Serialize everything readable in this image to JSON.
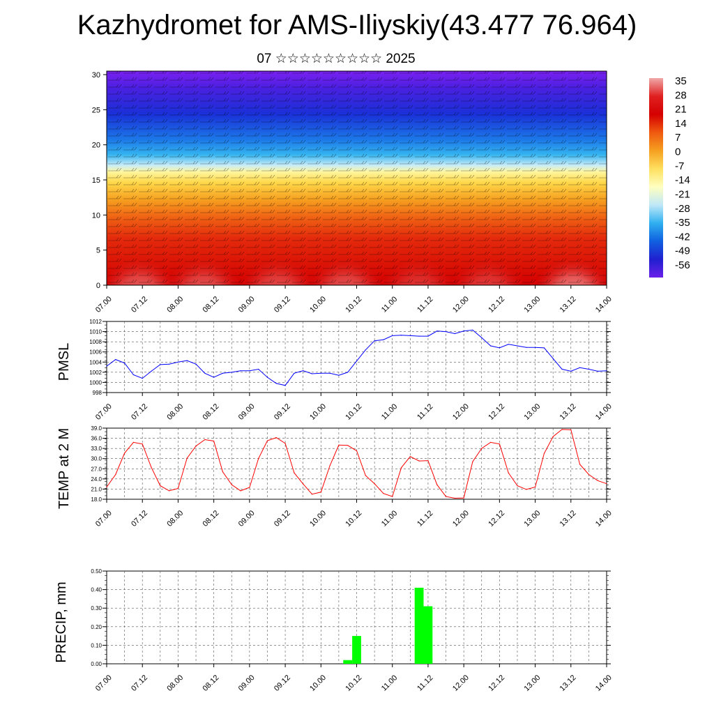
{
  "header": {
    "title": "Kazhydromet for AMS-Iliyskiy(43.477 76.964)",
    "subtitle": "07 ☆☆☆☆☆☆☆☆☆ 2025"
  },
  "colors": {
    "pmsl_line": "#0000ff",
    "temp_line": "#ff0000",
    "precip_bar": "#00ff00",
    "colorbar_stops": [
      "#f0a8a8",
      "#e02020",
      "#d40000",
      "#f05a10",
      "#f5a020",
      "#ffe060",
      "#ffffc0",
      "#c0e8f8",
      "#30b0f0",
      "#1060e0",
      "#2020d0",
      "#6a20e8"
    ]
  },
  "chart_data": [
    {
      "type": "heatmap",
      "title": "",
      "ylim": [
        0,
        30.5
      ],
      "yticks": [
        "0",
        "5",
        "10",
        "15",
        "20",
        "25",
        "30"
      ],
      "xticks": [
        "07.00",
        "07.12",
        "08.00",
        "08.12",
        "09.00",
        "09.12",
        "10.00",
        "10.12",
        "11.00",
        "11.12",
        "12.00",
        "12.12",
        "13.00",
        "13.12",
        "14.00"
      ],
      "colorbar_labels": [
        "35",
        "28",
        "21",
        "14",
        "7",
        "0",
        "-7",
        "-14",
        "-21",
        "-28",
        "-35",
        "-42",
        "-49",
        "-56"
      ],
      "legend_position": "right"
    },
    {
      "type": "line",
      "ylabel": "PMSL",
      "ylim": [
        998,
        1012
      ],
      "yticks": [
        "998",
        "1000",
        "1002",
        "1004",
        "1006",
        "1008",
        "1010",
        "1012"
      ],
      "xticks": [
        "07.00",
        "07.12",
        "08.00",
        "08.12",
        "09.00",
        "09.12",
        "10.00",
        "10.12",
        "11.00",
        "11.12",
        "12.00",
        "12.12",
        "13.00",
        "13.12",
        "14.00"
      ],
      "grid": true,
      "x": [
        0,
        3,
        6,
        9,
        12,
        15,
        18,
        21,
        24,
        27,
        30,
        33,
        36,
        39,
        42,
        45,
        48,
        51,
        54,
        57,
        60,
        63,
        66,
        69,
        72,
        75,
        78,
        81,
        84,
        87,
        90,
        93,
        96,
        99,
        102,
        105,
        108,
        111,
        114,
        117,
        120,
        123,
        126,
        129,
        132,
        135,
        138,
        141,
        144,
        147,
        150,
        153,
        156,
        159,
        162,
        165,
        168
      ],
      "series": [
        {
          "values": [
            1003.2,
            1004.5,
            1003.8,
            1001.5,
            1000.8,
            1002.2,
            1003.5,
            1003.6,
            1004.0,
            1004.3,
            1003.6,
            1001.8,
            1001.0,
            1001.8,
            1002.0,
            1002.3,
            1002.3,
            1002.6,
            1001.0,
            999.8,
            999.4,
            1001.8,
            1002.3,
            1001.7,
            1001.8,
            1001.8,
            1001.4,
            1002.0,
            1004.2,
            1006.4,
            1008.2,
            1008.4,
            1009.2,
            1009.3,
            1009.2,
            1009.1,
            1009.1,
            1010.1,
            1010.0,
            1009.6,
            1010.1,
            1010.3,
            1008.8,
            1007.2,
            1006.8,
            1007.5,
            1007.2,
            1006.9,
            1006.9,
            1006.8,
            1004.7,
            1002.6,
            1002.2,
            1002.9,
            1002.6,
            1002.2,
            1002.3
          ]
        }
      ]
    },
    {
      "type": "line",
      "ylabel": "TEMP at 2 M",
      "ylim": [
        18.0,
        39.0
      ],
      "yticks": [
        "18.0",
        "21.0",
        "24.0",
        "27.0",
        "30.0",
        "33.0",
        "36.0",
        "39.0"
      ],
      "xticks": [
        "07.00",
        "07.12",
        "08.00",
        "08.12",
        "09.00",
        "09.12",
        "10.00",
        "10.12",
        "11.00",
        "11.12",
        "12.00",
        "12.12",
        "13.00",
        "13.12",
        "14.00"
      ],
      "grid": true,
      "x": [
        0,
        3,
        6,
        9,
        12,
        15,
        18,
        21,
        24,
        27,
        30,
        33,
        36,
        39,
        42,
        45,
        48,
        51,
        54,
        57,
        60,
        63,
        66,
        69,
        72,
        75,
        78,
        81,
        84,
        87,
        90,
        93,
        96,
        99,
        102,
        105,
        108,
        111,
        114,
        117,
        120,
        123,
        126,
        129,
        132,
        135,
        138,
        141,
        144,
        147,
        150,
        153,
        156,
        159,
        162,
        165,
        168
      ],
      "series": [
        {
          "values": [
            21.6,
            25.3,
            31.6,
            34.8,
            34.3,
            27.4,
            22.0,
            20.5,
            21.2,
            30.1,
            33.7,
            35.6,
            35.2,
            26.1,
            22.3,
            20.5,
            21.5,
            30.0,
            35.3,
            36.2,
            34.5,
            25.8,
            22.5,
            19.5,
            20.1,
            27.9,
            34.0,
            33.9,
            32.3,
            25.0,
            22.6,
            19.7,
            18.8,
            27.3,
            30.6,
            29.3,
            29.4,
            22.3,
            18.8,
            18.3,
            18.4,
            29.1,
            33.0,
            34.8,
            34.3,
            25.8,
            22.0,
            20.9,
            21.6,
            31.5,
            36.5,
            38.6,
            38.5,
            28.3,
            25.3,
            23.5,
            22.6
          ]
        }
      ]
    },
    {
      "type": "bar",
      "ylabel": "PRECIP, mm",
      "ylim": [
        0.0,
        0.5
      ],
      "yticks": [
        "0.00",
        "0.10",
        "0.20",
        "0.30",
        "0.40",
        "0.50"
      ],
      "xticks": [
        "07.00",
        "07.12",
        "08.00",
        "08.12",
        "09.00",
        "09.12",
        "10.00",
        "10.12",
        "11.00",
        "11.12",
        "12.00",
        "12.12",
        "13.00",
        "13.12",
        "14.00"
      ],
      "grid": true,
      "bars": [
        {
          "x": 81,
          "value": 0.02
        },
        {
          "x": 84,
          "value": 0.15
        },
        {
          "x": 105,
          "value": 0.41
        },
        {
          "x": 108,
          "value": 0.31
        }
      ]
    }
  ]
}
